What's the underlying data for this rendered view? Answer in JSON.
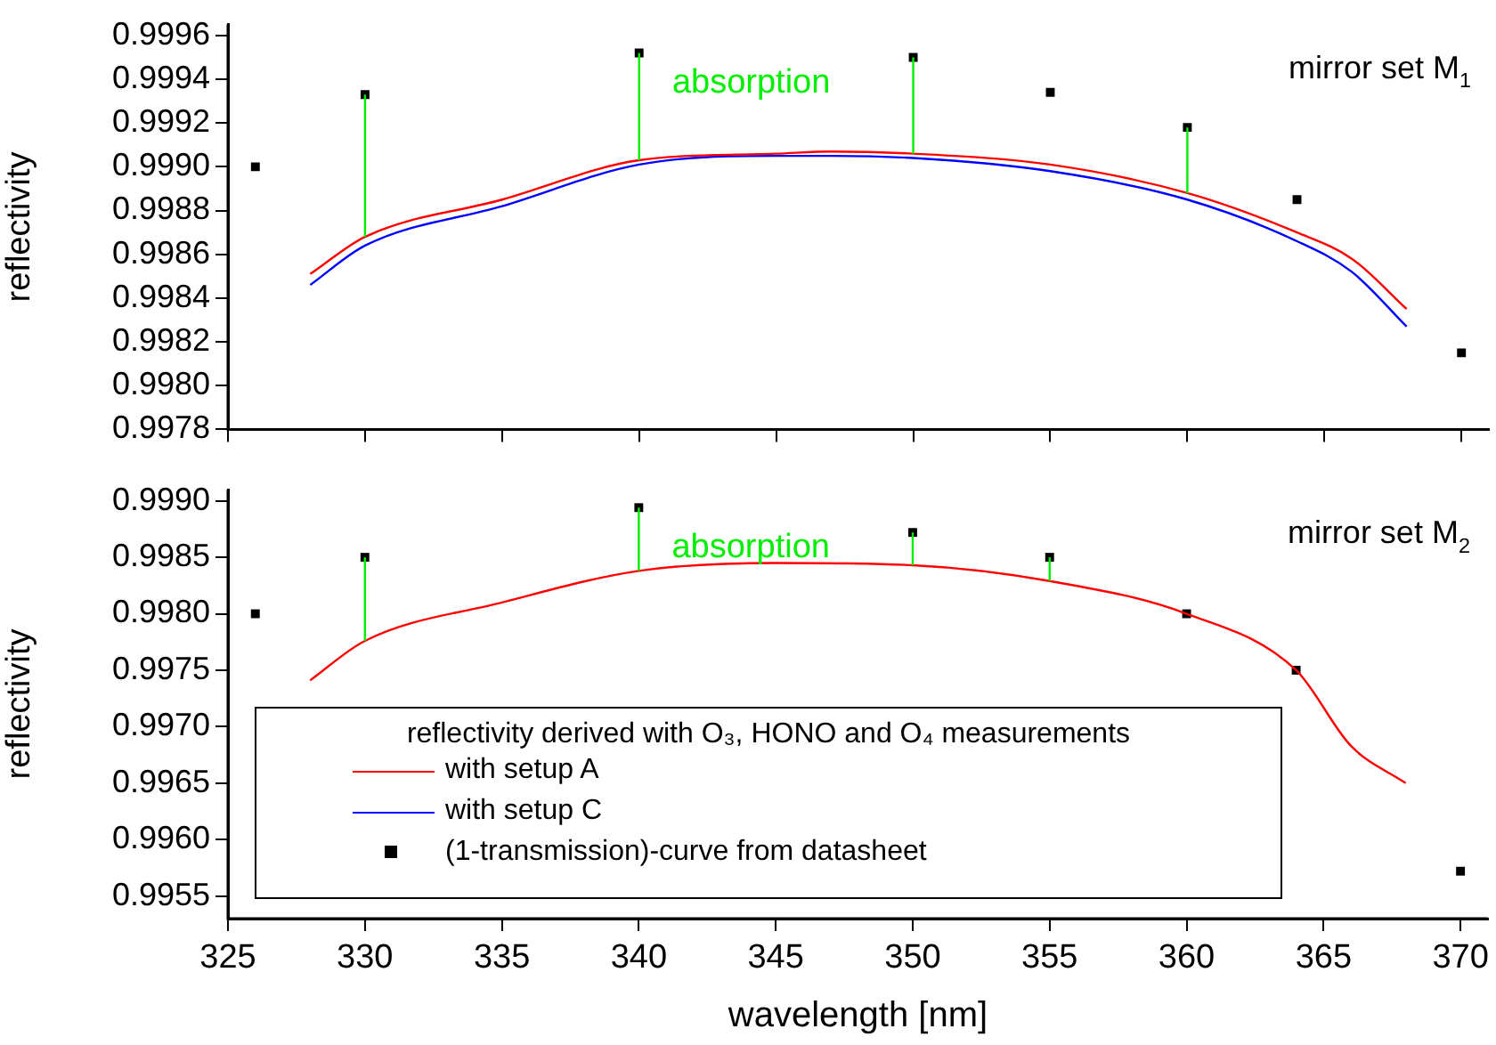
{
  "chart_data": [
    {
      "type": "line",
      "ylabel": "reflectivity",
      "annotations": [
        "absorption",
        "mirror set M$_{1}$"
      ],
      "xlim": [
        325,
        371
      ],
      "xticks": [
        325,
        330,
        335,
        340,
        345,
        350,
        355,
        360,
        365,
        370
      ],
      "ylim": [
        0.9978,
        0.99965
      ],
      "yticks": [
        0.9978,
        {
          "value": 0.998,
          "label": "0.9980"
        },
        0.9982,
        0.9984,
        0.9986,
        0.9988,
        {
          "value": 0.999,
          "label": "0.9990"
        },
        0.9992,
        0.9994,
        0.9996
      ],
      "tick_labels": "y",
      "legend": "bottom",
      "legend_title": "reflectivity derived with O₃, HONO and O₄ measurements",
      "grid": false,
      "series": [
        {
          "color": "#00ee00",
          "x": [
            330,
            330
          ],
          "values": [
            0.99868,
            0.99933
          ]
        },
        {
          "color": "#00ee00",
          "x": [
            340,
            340
          ],
          "values": [
            0.99903,
            0.99952
          ]
        },
        {
          "color": "#00ee00",
          "x": [
            350,
            350
          ],
          "values": [
            0.99906,
            0.9995
          ]
        },
        {
          "color": "#00ee00",
          "x": [
            360,
            360
          ],
          "values": [
            0.99888,
            0.99918
          ]
        },
        {
          "name": "with setup A",
          "color": "#ff0000",
          "x": [
            328,
            330,
            335,
            340,
            345,
            347,
            350,
            355,
            360,
            364,
            366,
            368
          ],
          "values": [
            0.99851,
            0.99868,
            0.99885,
            0.99903,
            0.99906,
            0.99907,
            0.99906,
            0.99901,
            0.99888,
            0.9987,
            0.99858,
            0.99835
          ]
        },
        {
          "name": "with setup C",
          "color": "#0000ff",
          "x": [
            328,
            330,
            335,
            340,
            345,
            347,
            350,
            355,
            360,
            364,
            366,
            368
          ],
          "values": [
            0.99846,
            0.99864,
            0.99882,
            0.99901,
            0.99905,
            0.99905,
            0.99904,
            0.99898,
            0.99885,
            0.99866,
            0.99852,
            0.99827
          ]
        },
        {
          "type": "scatter",
          "name": "(1-transmission)-curve from datasheet",
          "color": "#000000",
          "marker": "square",
          "x": [
            326,
            330,
            340,
            350,
            355,
            360,
            364,
            370
          ],
          "values": [
            0.999,
            0.99933,
            0.99952,
            0.9995,
            0.99934,
            0.99918,
            0.99885,
            0.99815
          ]
        }
      ]
    },
    {
      "type": "line",
      "xlabel": "wavelength [nm]",
      "ylabel": "reflectivity",
      "annotations": [
        "absorption",
        "mirror set M$_{2}$"
      ],
      "xlim": [
        325,
        371
      ],
      "xticks": [
        325,
        330,
        335,
        340,
        345,
        350,
        355,
        360,
        365,
        370
      ],
      "ylim": [
        0.9953,
        0.9991
      ],
      "yticks": [
        0.9955,
        {
          "value": 0.996,
          "label": "0.9960"
        },
        0.9965,
        {
          "value": 0.997,
          "label": "0.9970"
        },
        0.9975,
        {
          "value": 0.998,
          "label": "0.9980"
        },
        0.9985,
        {
          "value": 0.999,
          "label": "0.9990"
        }
      ],
      "grid": false,
      "series": [
        {
          "color": "#00ee00",
          "x": [
            330,
            330
          ],
          "values": [
            0.99776,
            0.9985
          ]
        },
        {
          "color": "#00ee00",
          "x": [
            340,
            340
          ],
          "values": [
            0.99838,
            0.99894
          ]
        },
        {
          "color": "#00ee00",
          "x": [
            350,
            350
          ],
          "values": [
            0.99843,
            0.99872
          ]
        },
        {
          "color": "#00ee00",
          "x": [
            355,
            355
          ],
          "values": [
            0.99829,
            0.9985
          ]
        },
        {
          "color": "#ff0000",
          "x": [
            328,
            330,
            335,
            340,
            345,
            350,
            355,
            360,
            364,
            366,
            368
          ],
          "values": [
            0.99741,
            0.99776,
            0.9981,
            0.99838,
            0.99845,
            0.99843,
            0.99829,
            0.998,
            0.9975,
            0.99683,
            0.9965
          ]
        },
        {
          "type": "scatter",
          "color": "#000000",
          "marker": "square",
          "x": [
            326,
            330,
            340,
            350,
            355,
            360,
            364,
            370
          ],
          "values": [
            0.998,
            0.9985,
            0.99894,
            0.99872,
            0.9985,
            0.998,
            0.9975,
            0.99572
          ]
        }
      ]
    }
  ]
}
